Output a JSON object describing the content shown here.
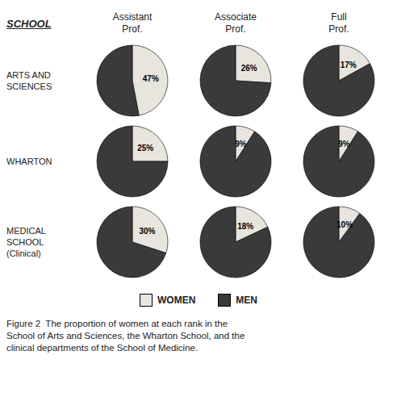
{
  "chart_data": {
    "type": "pie",
    "title": "SCHOOL",
    "columns": [
      "Assistant\nProf.",
      "Associate\nProf.",
      "Full\nProf."
    ],
    "rows": [
      "ARTS AND\nSCIENCES",
      "WHARTON",
      "MEDICAL\nSCHOOL\n(Clinical)"
    ],
    "categories": [
      "WOMEN",
      "MEN"
    ],
    "colors": [
      "#e8e4de",
      "#3a3a3a"
    ],
    "legend": "bottom",
    "data_labels": true,
    "cells": [
      [
        {
          "values": [
            47,
            53
          ],
          "value_labels": [
            "47%",
            null
          ]
        },
        {
          "values": [
            26,
            74
          ],
          "value_labels": [
            "26%",
            null
          ]
        },
        {
          "values": [
            17,
            83
          ],
          "value_labels": [
            "17%",
            null
          ]
        }
      ],
      [
        {
          "values": [
            25,
            75
          ],
          "value_labels": [
            "25%",
            null
          ]
        },
        {
          "values": [
            9,
            91
          ],
          "value_labels": [
            "9%",
            null
          ]
        },
        {
          "values": [
            9,
            91
          ],
          "value_labels": [
            "9%",
            null
          ]
        }
      ],
      [
        {
          "values": [
            30,
            70
          ],
          "value_labels": [
            "30%",
            null
          ]
        },
        {
          "values": [
            18,
            82
          ],
          "value_labels": [
            "18%",
            null
          ]
        },
        {
          "values": [
            10,
            90
          ],
          "value_labels": [
            "10%",
            null
          ]
        }
      ]
    ],
    "caption": "Figure 2  The proportion of women at each rank in the\nSchool of Arts and Sciences, the Wharton School, and the\nclinical departments of the School of Medicine."
  }
}
